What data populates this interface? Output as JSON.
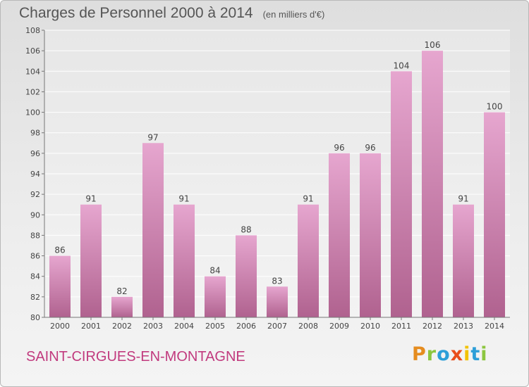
{
  "title": "Charges de Personnel 2000 à 2014",
  "subtitle": "(en milliers d'€)",
  "town": "SAINT-CIRGUES-EN-MONTAGNE",
  "logo": [
    "P",
    "r",
    "o",
    "x",
    "i",
    "t",
    "i"
  ],
  "colors": {
    "bar_top": "#e6a6cf",
    "bar_bottom": "#b0628f",
    "town_text": "#c13a7e"
  },
  "chart_data": {
    "type": "bar",
    "title": "Charges de Personnel 2000 à 2014",
    "subtitle": "(en milliers d'€)",
    "categories": [
      "2000",
      "2001",
      "2002",
      "2003",
      "2004",
      "2005",
      "2006",
      "2007",
      "2008",
      "2009",
      "2010",
      "2011",
      "2012",
      "2013",
      "2014"
    ],
    "values": [
      86,
      91,
      82,
      97,
      91,
      84,
      88,
      83,
      91,
      96,
      96,
      104,
      106,
      91,
      100
    ],
    "ylim": [
      80,
      108
    ],
    "yticks": [
      80,
      82,
      84,
      86,
      88,
      90,
      92,
      94,
      96,
      98,
      100,
      102,
      104,
      106,
      108
    ],
    "grid": true,
    "legend": "none"
  }
}
